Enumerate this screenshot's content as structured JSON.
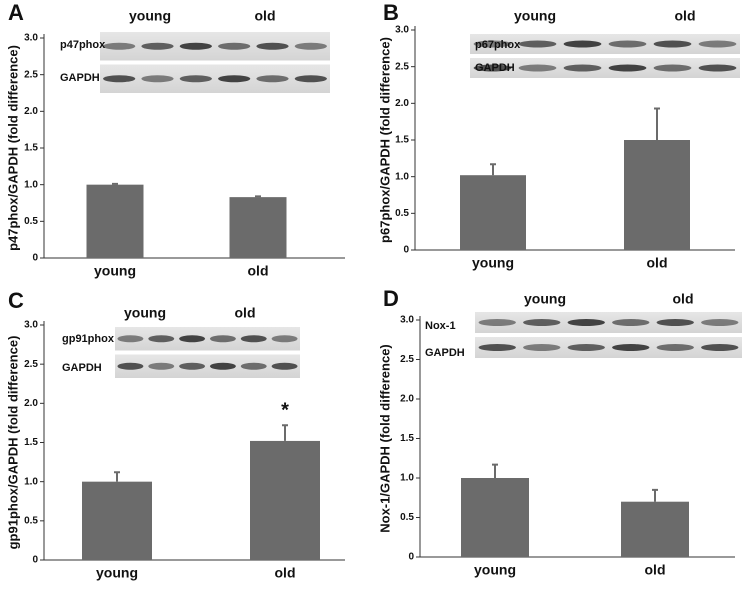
{
  "chart_data": [
    {
      "type": "bar",
      "panel_label": "A",
      "y_label": "p47phox/GAPDH (fold difference)",
      "categories": [
        "young",
        "old"
      ],
      "values": [
        1.0,
        0.83
      ],
      "errors": [
        0.01,
        0.01
      ],
      "color": "#6b6b6b",
      "ylim": [
        0,
        3
      ],
      "yticks": [
        0,
        0.5,
        {
          "value": 1,
          "label": "1.0"
        },
        1.5,
        {
          "value": 2,
          "label": "2.0"
        },
        2.5,
        {
          "value": 3,
          "label": "3.0"
        }
      ],
      "group_labels": [
        "young",
        "old"
      ],
      "blot_labels": [
        "p47phox",
        "GAPDH"
      ]
    },
    {
      "type": "bar",
      "panel_label": "B",
      "y_label": "p67phox/GAPDH (fold difference)",
      "categories": [
        "young",
        "old"
      ],
      "values": [
        1.02,
        1.5
      ],
      "errors": [
        0.15,
        0.43
      ],
      "color": "#6b6b6b",
      "ylim": [
        0,
        3
      ],
      "yticks": [
        0,
        0.5,
        {
          "value": 1,
          "label": "1.0"
        },
        1.5,
        {
          "value": 2,
          "label": "2.0"
        },
        2.5,
        {
          "value": 3,
          "label": "3.0"
        }
      ],
      "group_labels": [
        "young",
        "old"
      ],
      "blot_labels": [
        "p67phox",
        "GAPDH"
      ]
    },
    {
      "type": "bar",
      "panel_label": "C",
      "y_label": "gp91phox/GAPDH (fold difference)",
      "categories": [
        "young",
        "old"
      ],
      "values": [
        1.0,
        1.52
      ],
      "errors": [
        0.12,
        0.2
      ],
      "color": "#6b6b6b",
      "ylim": [
        0,
        3
      ],
      "yticks": [
        0,
        0.5,
        {
          "value": 1,
          "label": "1.0"
        },
        1.5,
        {
          "value": 2,
          "label": "2.0"
        },
        2.5,
        {
          "value": 3,
          "label": "3.0"
        }
      ],
      "group_labels": [
        "young",
        "old"
      ],
      "blot_labels": [
        "gp91phox",
        "GAPDH"
      ],
      "annotation": "*"
    },
    {
      "type": "bar",
      "panel_label": "D",
      "y_label": "Nox-1/GAPDH (fold difference)",
      "categories": [
        "young",
        "old"
      ],
      "values": [
        1.0,
        0.7
      ],
      "errors": [
        0.17,
        0.15
      ],
      "color": "#6b6b6b",
      "ylim": [
        0,
        3
      ],
      "yticks": [
        0,
        0.5,
        {
          "value": 1,
          "label": "1.0"
        },
        1.5,
        {
          "value": 2,
          "label": "2.0"
        },
        2.5,
        {
          "value": 3,
          "label": "3.0"
        }
      ],
      "group_labels": [
        "young",
        "old"
      ],
      "blot_labels": [
        "Nox-1",
        "GAPDH"
      ]
    }
  ]
}
